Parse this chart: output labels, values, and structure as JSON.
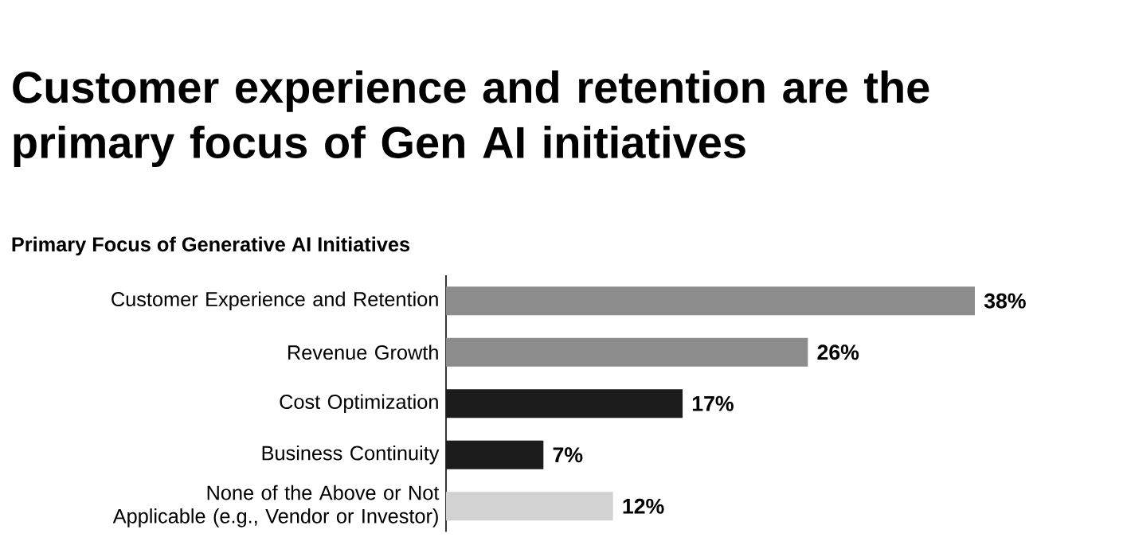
{
  "chart_data": {
    "type": "bar",
    "orientation": "horizontal",
    "title": "Customer experience and retention are the primary focus of Gen AI initiatives",
    "subtitle": "Primary Focus of Generative AI Initiatives",
    "categories": [
      "Customer Experience and Retention",
      "Revenue Growth",
      "Cost Optimization",
      "Business Continuity",
      "None of the Above or Not Applicable (e.g., Vendor or Investor)"
    ],
    "values": [
      38,
      26,
      17,
      7,
      12
    ],
    "value_labels": [
      "38%",
      "26%",
      "17%",
      "7%",
      "12%"
    ],
    "colors": [
      "#8c8c8c",
      "#8c8c8c",
      "#1c1c1c",
      "#1c1c1c",
      "#d2d2d2"
    ]
  }
}
